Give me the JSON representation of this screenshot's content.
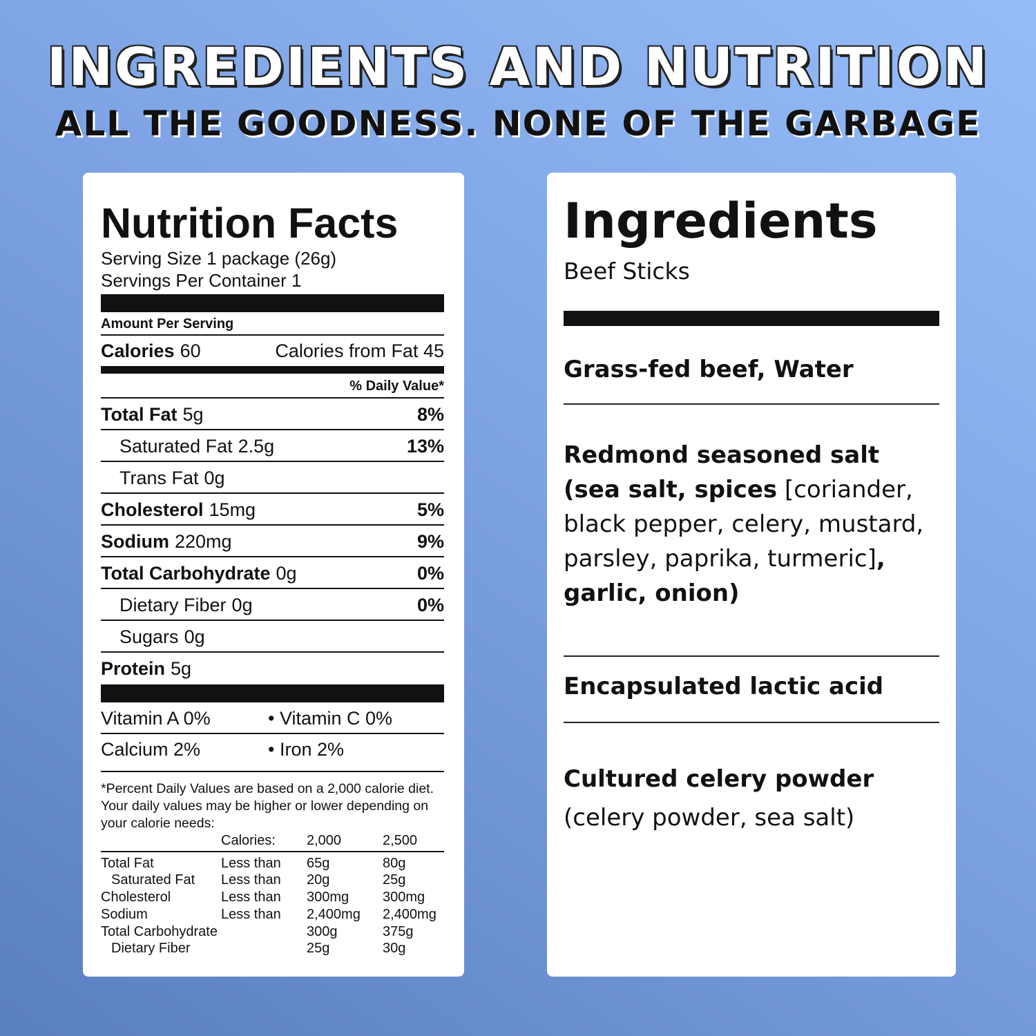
{
  "header": {
    "title": "INGREDIENTS AND NUTRITION",
    "subtitle": "ALL THE GOODNESS. NONE OF THE GARBAGE"
  },
  "nutrition": {
    "title": "Nutrition Facts",
    "serving_size": "Serving Size 1 package (26g)",
    "servings_per_container": "Servings Per Container 1",
    "amount_per_serving": "Amount Per Serving",
    "calories_label": "Calories",
    "calories": "60",
    "calories_from_fat": "Calories from Fat 45",
    "daily_value_header": "% Daily Value*",
    "rows": [
      {
        "label": "Total Fat",
        "amount": "5g",
        "daily_value": "8%"
      },
      {
        "label": "Saturated Fat",
        "amount": "2.5g",
        "daily_value": "13%"
      },
      {
        "label": "Trans Fat",
        "amount": "0g"
      },
      {
        "label": "Cholesterol",
        "amount": "15mg",
        "daily_value": "5%"
      },
      {
        "label": "Sodium",
        "amount": "220mg",
        "daily_value": "9%"
      },
      {
        "label": "Total Carbohydrate",
        "amount": "0g",
        "daily_value": "0%"
      },
      {
        "label": "Dietary Fiber",
        "amount": "0g",
        "daily_value": "0%"
      },
      {
        "label": "Sugars",
        "amount": "0g"
      },
      {
        "label": "Protein",
        "amount": "5g"
      }
    ],
    "vitamins": [
      [
        "Vitamin A 0%",
        "• Vitamin C 0%"
      ],
      [
        "Calcium 2%",
        "• Iron 2%"
      ]
    ],
    "footnote": "*Percent Daily Values are based on a 2,000 calorie diet. Your daily values may be higher or lower depending on your calorie needs:",
    "table_header": [
      "Calories:",
      "2,000",
      "2,500"
    ],
    "table_rows": [
      {
        "nutrient": "Total Fat",
        "limit": "Less than",
        "v2000": "65g",
        "v2500": "80g"
      },
      {
        "nutrient": "Saturated Fat",
        "limit": "Less than",
        "v2000": "20g",
        "v2500": "25g"
      },
      {
        "nutrient": "Cholesterol",
        "limit": "Less than",
        "v2000": "300mg",
        "v2500": "300mg"
      },
      {
        "nutrient": "Sodium",
        "limit": "Less than",
        "v2000": "2,400mg",
        "v2500": "2,400mg"
      },
      {
        "nutrient": "Total Carbohydrate",
        "v2000": "300g",
        "v2500": "375g"
      },
      {
        "nutrient": "Dietary Fiber",
        "v2000": "25g",
        "v2500": "30g"
      }
    ]
  },
  "ingredients": {
    "title": "Ingredients",
    "subtitle": "Beef Sticks",
    "items": [
      [
        "Grass-fed beef, Water"
      ],
      [
        "Redmond seasoned salt (sea salt, spices",
        " [coriander, black pepper, celery, mustard, parsley, paprika, turmeric]",
        ", garlic, onion)"
      ],
      [
        "Encapsulated lactic acid"
      ],
      [
        "Cultured celery powder",
        "(celery powder, sea salt)"
      ]
    ]
  }
}
